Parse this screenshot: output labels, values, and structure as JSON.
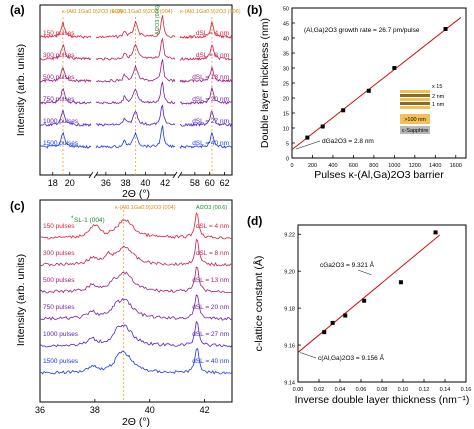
{
  "chart_data": [
    {
      "panel": "(a)",
      "type": "line",
      "xlabel": "2Θ (°)",
      "ylabel": "Intensity (arb. units)",
      "x_segments": [
        {
          "range": [
            16.5,
            22.5
          ],
          "ticks": [
            "18",
            "20"
          ]
        },
        {
          "range": [
            35,
            43
          ],
          "ticks": [
            "36",
            "38",
            "40",
            "42"
          ]
        },
        {
          "range": [
            56,
            63
          ],
          "ticks": [
            "58",
            "60",
            "62"
          ]
        }
      ],
      "peak_labels": [
        "κ-(Al0.1Ga0.9)2O3 (002)",
        "κ-(Al0.1Ga0.9)2O3 (004)",
        "κ-(Al0.1Ga0.9)2O3 (006)"
      ],
      "substrate_label": "Al2O3 (006)",
      "series": [
        {
          "name": "150 pulses",
          "dsl": "dSL = 4 nm",
          "color": "#e0203a"
        },
        {
          "name": "300 pulses",
          "dsl": "dSL = 8 nm",
          "color": "#c31f5e"
        },
        {
          "name": "500 pulses",
          "dsl": "dSL = 13 nm",
          "color": "#a01d7f"
        },
        {
          "name": "750 pulses",
          "dsl": "dSL = 20 nm",
          "color": "#7a1fa0"
        },
        {
          "name": "1000 pulses",
          "dsl": "dSL = 27 nm",
          "color": "#5523c0"
        },
        {
          "name": "1500 pulses",
          "dsl": "dSL = 40 nm",
          "color": "#1a3be8"
        }
      ]
    },
    {
      "panel": "(b)",
      "type": "scatter",
      "xlabel": "Pulses κ-(Al,Ga)2O3 barrier",
      "ylabel": "Double layer thickness (nm)",
      "xlim": [
        0,
        1700
      ],
      "ylim": [
        0,
        50
      ],
      "xticks": [
        0,
        200,
        400,
        600,
        800,
        1000,
        1200,
        1400,
        1600
      ],
      "yticks": [
        0,
        5,
        10,
        15,
        20,
        25,
        30,
        35,
        40,
        45,
        50
      ],
      "growth_rate_label": "(Al,Ga)2O3 growth rate = 26.7 pm/pulse",
      "intercept_label": "dGa2O3 = 2.8 nm",
      "x": [
        150,
        300,
        500,
        750,
        1000,
        1500
      ],
      "y": [
        6.8,
        10.5,
        15.9,
        22.4,
        30.0,
        43.0
      ],
      "fit": {
        "slope": 0.0267,
        "intercept": 2.8
      },
      "inset_labels": [
        "x 15",
        "2 nm",
        "1 nm",
        ">100 nm",
        "c-Sapphire"
      ]
    },
    {
      "panel": "(c)",
      "type": "line",
      "xlabel": "2Θ (°)",
      "ylabel": "Intensity (arb. units)",
      "xlim": [
        36,
        43
      ],
      "xticks": [
        36,
        38,
        40,
        42
      ],
      "peak_labels": [
        "κ-(Al0.1Ga0.9)2O3 (004)",
        "Al2O3 (00.6)"
      ],
      "satellite_label": "SL-1 (004)",
      "satellite_star": "*",
      "series": [
        {
          "name": "150 pulses",
          "dsl": "dSL = 4 nm",
          "color": "#e0203a"
        },
        {
          "name": "300 pulses",
          "dsl": "dSL = 8 nm",
          "color": "#c31f5e"
        },
        {
          "name": "500 pulses",
          "dsl": "dSL = 13 nm",
          "color": "#a01d7f"
        },
        {
          "name": "750 pulses",
          "dsl": "dSL = 20 nm",
          "color": "#7a1fa0"
        },
        {
          "name": "1000 pulses",
          "dsl": "dSL = 27 nm",
          "color": "#5523c0"
        },
        {
          "name": "1500 pulses",
          "dsl": "dSL = 40 nm",
          "color": "#1a3be8"
        }
      ]
    },
    {
      "panel": "(d)",
      "type": "scatter",
      "xlabel": "Inverse double layer thickness (nm⁻¹)",
      "ylabel": "c-lattice constant (Å)",
      "xlim": [
        0,
        0.16
      ],
      "ylim": [
        9.14,
        9.225
      ],
      "xticks": [
        0.0,
        0.02,
        0.04,
        0.06,
        0.08,
        0.1,
        0.12,
        0.14,
        0.16
      ],
      "xtick_labels": [
        "0.00",
        "0.02",
        "0.04",
        "0.06",
        "0.08",
        "0.10",
        "0.12",
        "0.14",
        "0.16"
      ],
      "yticks": [
        9.14,
        9.16,
        9.18,
        9.2,
        9.22
      ],
      "ytick_labels": [
        "9.14",
        "9.16",
        "9.18",
        "9.20",
        "9.22"
      ],
      "label_ga2o3": "cGa2O3 = 9.321 Å",
      "label_algao": "c(Al,Ga)2O3 = 9.156 Å",
      "x": [
        0.025,
        0.033,
        0.045,
        0.063,
        0.098,
        0.131
      ],
      "y": [
        9.167,
        9.172,
        9.176,
        9.184,
        9.194,
        9.221
      ],
      "fit": {
        "slope": 0.4712,
        "intercept": 9.156
      }
    }
  ]
}
